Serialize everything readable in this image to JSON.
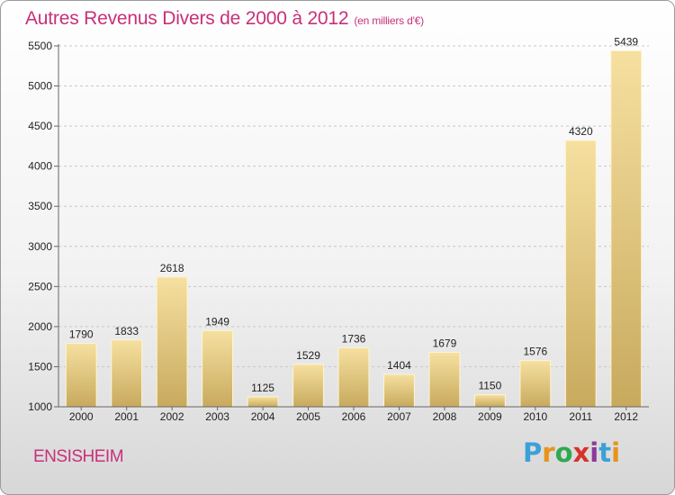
{
  "header": {
    "title": "Autres Revenus Divers de 2000 à 2012",
    "subtitle": "(en milliers d'€)"
  },
  "footer": {
    "town": "ENSISHEIM"
  },
  "brand": {
    "letters": [
      "P",
      "r",
      "o",
      "x",
      "i",
      "t",
      "i"
    ],
    "colors": [
      "#3ba0d8",
      "#e8931c",
      "#2fa84f",
      "#d8322c",
      "#8a3a9a",
      "#3ba0d8",
      "#e8931c"
    ]
  },
  "colors": {
    "bar_light": "#f6e0a0",
    "bar_dark": "#c8aa5e",
    "grid": "#c8c8c8"
  },
  "chart_data": {
    "type": "bar",
    "categories": [
      "2000",
      "2001",
      "2002",
      "2003",
      "2004",
      "2005",
      "2006",
      "2007",
      "2008",
      "2009",
      "2010",
      "2011",
      "2012"
    ],
    "values": [
      1790,
      1833,
      2618,
      1949,
      1125,
      1529,
      1736,
      1404,
      1679,
      1150,
      1576,
      4320,
      5439
    ],
    "yticks": [
      1000,
      1500,
      2000,
      2500,
      3000,
      3500,
      4000,
      4500,
      5000,
      5500
    ],
    "ylim": [
      1000,
      5500
    ],
    "grid": true,
    "xlabel": "",
    "ylabel": ""
  }
}
